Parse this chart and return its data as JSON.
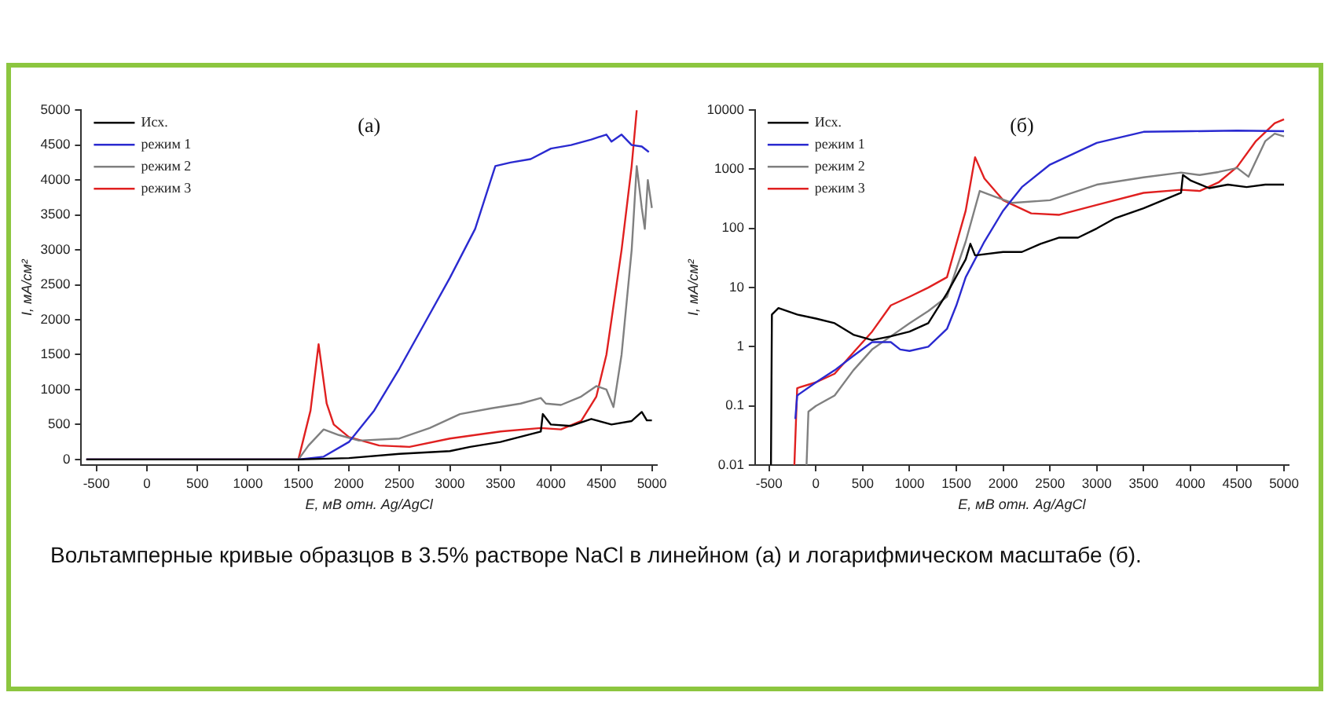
{
  "chart_data": [
    {
      "type": "line",
      "title": "(а)",
      "xlabel": "E, мВ отн. Ag/AgCl",
      "ylabel": "I, мА/см²",
      "xlim": [
        -650,
        5050
      ],
      "xticks": [
        -500,
        0,
        500,
        1000,
        1500,
        2000,
        2500,
        3000,
        3500,
        4000,
        4500,
        5000
      ],
      "ylim": [
        -80,
        5000
      ],
      "yticks": [
        0,
        500,
        1000,
        1500,
        2000,
        2500,
        3000,
        3500,
        4000,
        4500,
        5000
      ],
      "grid": false,
      "legend": "top left",
      "marker": "none",
      "line_style": "solid",
      "annotations": [
        "Вольтамперные кривые образцов в 3.5% растворе NaCl в линейном (а) и логарифмическом масштабе (б)."
      ],
      "series": [
        {
          "name": "Исх.",
          "color": "#000000",
          "x": [
            -600,
            1500,
            2000,
            2500,
            3000,
            3200,
            3500,
            3900,
            3920,
            4000,
            4200,
            4400,
            4600,
            4800,
            4900,
            4950,
            5000
          ],
          "values": [
            0,
            0,
            20,
            80,
            120,
            180,
            250,
            400,
            650,
            500,
            480,
            580,
            500,
            550,
            680,
            560,
            560
          ]
        },
        {
          "name": "режим 1",
          "color": "#2a2ad0",
          "x": [
            -600,
            1500,
            1750,
            2000,
            2250,
            2500,
            2750,
            3000,
            3250,
            3450,
            3600,
            3800,
            4000,
            4200,
            4400,
            4550,
            4600,
            4700,
            4800,
            4900,
            4970
          ],
          "values": [
            0,
            0,
            40,
            250,
            700,
            1300,
            1950,
            2600,
            3300,
            4200,
            4250,
            4300,
            4450,
            4500,
            4580,
            4650,
            4550,
            4650,
            4500,
            4480,
            4400
          ]
        },
        {
          "name": "режим 2",
          "color": "#808080",
          "x": [
            -600,
            1500,
            1600,
            1750,
            1900,
            2100,
            2500,
            2800,
            3100,
            3400,
            3700,
            3900,
            3950,
            4100,
            4300,
            4450,
            4550,
            4620,
            4700,
            4800,
            4850,
            4900,
            4930,
            4960,
            5000
          ],
          "values": [
            0,
            0,
            200,
            430,
            350,
            270,
            300,
            450,
            650,
            730,
            800,
            880,
            800,
            780,
            900,
            1050,
            1000,
            750,
            1500,
            3000,
            4200,
            3600,
            3300,
            4000,
            3600
          ]
        },
        {
          "name": "режим 3",
          "color": "#e02020",
          "x": [
            -600,
            1500,
            1620,
            1700,
            1780,
            1850,
            2000,
            2300,
            2600,
            3000,
            3500,
            3900,
            4100,
            4300,
            4450,
            4550,
            4700,
            4800,
            4850
          ],
          "values": [
            0,
            0,
            700,
            1650,
            800,
            500,
            320,
            200,
            180,
            300,
            400,
            450,
            430,
            550,
            900,
            1500,
            3000,
            4200,
            5000
          ]
        }
      ]
    },
    {
      "type": "line",
      "title": "(б)",
      "xlabel": "E, мВ отн. Ag/AgCl",
      "ylabel": "I, мА/см²",
      "log": "y",
      "xlim": [
        -650,
        5050
      ],
      "xticks": [
        -500,
        0,
        500,
        1000,
        1500,
        2000,
        2500,
        3000,
        3500,
        4000,
        4500,
        5000
      ],
      "ylim": [
        0.01,
        10000
      ],
      "yticks": [
        0.01,
        0.1,
        1,
        10,
        100,
        1000,
        10000
      ],
      "grid": false,
      "legend": "top left",
      "marker": "none",
      "line_style": "solid",
      "series": [
        {
          "name": "Исх.",
          "color": "#000000",
          "x": [
            -480,
            -470,
            -400,
            -200,
            0,
            200,
            400,
            600,
            800,
            1000,
            1200,
            1400,
            1600,
            1650,
            1700,
            2000,
            2200,
            2400,
            2600,
            2800,
            3000,
            3200,
            3500,
            3900,
            3920,
            4000,
            4200,
            4400,
            4600,
            4800,
            5000
          ],
          "values": [
            0.01,
            3.5,
            4.5,
            3.5,
            3,
            2.5,
            1.6,
            1.3,
            1.5,
            1.8,
            2.5,
            8,
            30,
            55,
            35,
            40,
            40,
            55,
            70,
            70,
            100,
            150,
            220,
            400,
            800,
            650,
            480,
            550,
            500,
            550,
            550
          ]
        },
        {
          "name": "режим 1",
          "color": "#2a2ad0",
          "x": [
            -220,
            -200,
            0,
            200,
            400,
            600,
            800,
            900,
            1000,
            1200,
            1400,
            1500,
            1600,
            1800,
            2000,
            2200,
            2500,
            3000,
            3500,
            4000,
            4500,
            5000
          ],
          "values": [
            0.06,
            0.15,
            0.25,
            0.4,
            0.7,
            1.2,
            1.2,
            0.9,
            0.85,
            1,
            2,
            5,
            15,
            60,
            200,
            500,
            1200,
            2800,
            4300,
            4400,
            4500,
            4400
          ]
        },
        {
          "name": "режим 2",
          "color": "#808080",
          "x": [
            -100,
            -80,
            0,
            200,
            400,
            600,
            800,
            1000,
            1200,
            1400,
            1600,
            1750,
            1900,
            2100,
            2500,
            3000,
            3500,
            3900,
            4100,
            4300,
            4500,
            4620,
            4800,
            4900,
            5000
          ],
          "values": [
            0.01,
            0.08,
            0.1,
            0.15,
            0.4,
            0.9,
            1.5,
            2.5,
            4,
            7,
            60,
            430,
            350,
            270,
            300,
            550,
            730,
            880,
            800,
            900,
            1050,
            750,
            3000,
            4000,
            3600
          ]
        },
        {
          "name": "режим 3",
          "color": "#e02020",
          "x": [
            -230,
            -200,
            0,
            200,
            400,
            600,
            800,
            1000,
            1200,
            1400,
            1600,
            1700,
            1800,
            2000,
            2300,
            2600,
            3000,
            3500,
            3900,
            4100,
            4300,
            4500,
            4700,
            4900,
            5000
          ],
          "values": [
            0.01,
            0.2,
            0.25,
            0.35,
            0.8,
            1.8,
            5,
            7,
            10,
            15,
            200,
            1600,
            700,
            300,
            180,
            170,
            250,
            400,
            450,
            430,
            600,
            1100,
            3000,
            6000,
            7000
          ]
        }
      ]
    }
  ]
}
